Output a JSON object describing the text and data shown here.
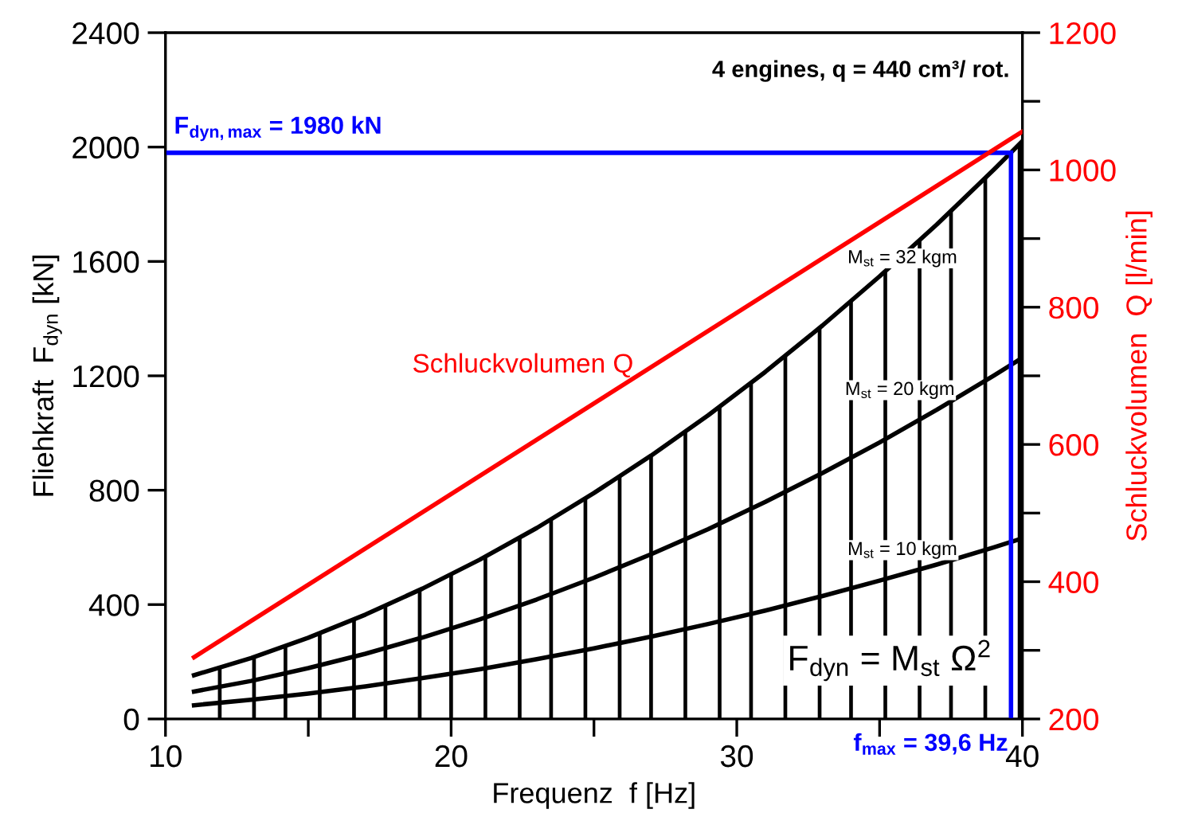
{
  "chart_data": {
    "type": "line",
    "xlabel": "Frequenz  f [Hz]",
    "ylabel": "Fliehkraft  F$_{dyn}$ [kN]",
    "y2label": "Schluckvolumen  Q [l/min]",
    "xlim": [
      10,
      40
    ],
    "xticks": [
      10,
      {
        "value": 15,
        "label": null
      },
      20,
      {
        "value": 25,
        "label": null
      },
      30,
      {
        "value": 35,
        "label": null
      },
      40
    ],
    "ylim": [
      0,
      2400
    ],
    "yticks": [
      0,
      400,
      800,
      1200,
      1600,
      2000,
      2400
    ],
    "y2lim": [
      200,
      1200
    ],
    "y2ticks": [
      200,
      {
        "value": 300,
        "label": null
      },
      400,
      {
        "value": 500,
        "label": null
      },
      600,
      {
        "value": 700,
        "label": null
      },
      800,
      {
        "value": 900,
        "label": null
      },
      1000,
      {
        "value": 1100,
        "label": null
      },
      1200
    ],
    "grid": false,
    "legend": false,
    "line_style": "solid",
    "marker": "none",
    "series": [
      {
        "type": "bar",
        "color": "#000000",
        "x": [
          11.9,
          13.1,
          14.2,
          15.4,
          16.6,
          17.7,
          18.9,
          20.0,
          21.2,
          22.4,
          23.5,
          24.7,
          25.9,
          27.0,
          28.2,
          29.4,
          30.5,
          31.7,
          32.9,
          34.0,
          35.2,
          36.4,
          37.5,
          38.7,
          39.9
        ],
        "values": [
          179,
          217,
          255,
          300,
          348,
          396,
          451,
          505,
          568,
          634,
          698,
          771,
          847,
          921,
          1005,
          1092,
          1175,
          1270,
          1367,
          1460,
          1565,
          1674,
          1777,
          1892,
          2011
        ]
      },
      {
        "color": "#000000",
        "x": [
          11,
          13,
          15,
          17,
          19,
          21,
          23,
          25,
          27,
          29,
          31,
          33,
          35,
          37,
          39,
          40
        ],
        "values": [
          153,
          213,
          284,
          365,
          456,
          557,
          668,
          790,
          921,
          1062,
          1214,
          1376,
          1548,
          1729,
          1921,
          2021
        ]
      },
      {
        "color": "#000000",
        "x": [
          11,
          13,
          15,
          17,
          19,
          21,
          23,
          25,
          27,
          29,
          31,
          33,
          35,
          37,
          39,
          40
        ],
        "values": [
          96,
          133,
          178,
          228,
          285,
          348,
          418,
          494,
          576,
          664,
          759,
          860,
          967,
          1081,
          1201,
          1263
        ]
      },
      {
        "color": "#000000",
        "x": [
          11,
          13,
          15,
          17,
          19,
          21,
          23,
          25,
          27,
          29,
          31,
          33,
          35,
          37,
          39,
          40
        ],
        "values": [
          48,
          67,
          89,
          114,
          143,
          174,
          209,
          247,
          288,
          332,
          379,
          430,
          484,
          540,
          600,
          632
        ]
      },
      {
        "color": "#ff0000",
        "axis": "y2",
        "x": [
          11,
          40
        ],
        "values": [
          290,
          1056
        ]
      }
    ],
    "ref_lines": [
      {
        "axis": "y",
        "value": 1980,
        "label": "F$_{dyn,max}$ = 1980 kN",
        "color": "#0000ff"
      },
      {
        "axis": "x",
        "value": 39.6,
        "label": "f$_{max}$ = 39,6 Hz",
        "color": "#0000ff"
      }
    ],
    "annotations": [
      "4 engines, q = 440 cm³/ rot.",
      "Schluckvolumen Q",
      "M$_{st}$ = 32 kgm",
      "M$_{st}$ = 20 kgm",
      "M$_{st}$ = 10 kgm",
      "F$_{dyn}$ = M$_{st}$ Ω$^{2}$"
    ]
  }
}
